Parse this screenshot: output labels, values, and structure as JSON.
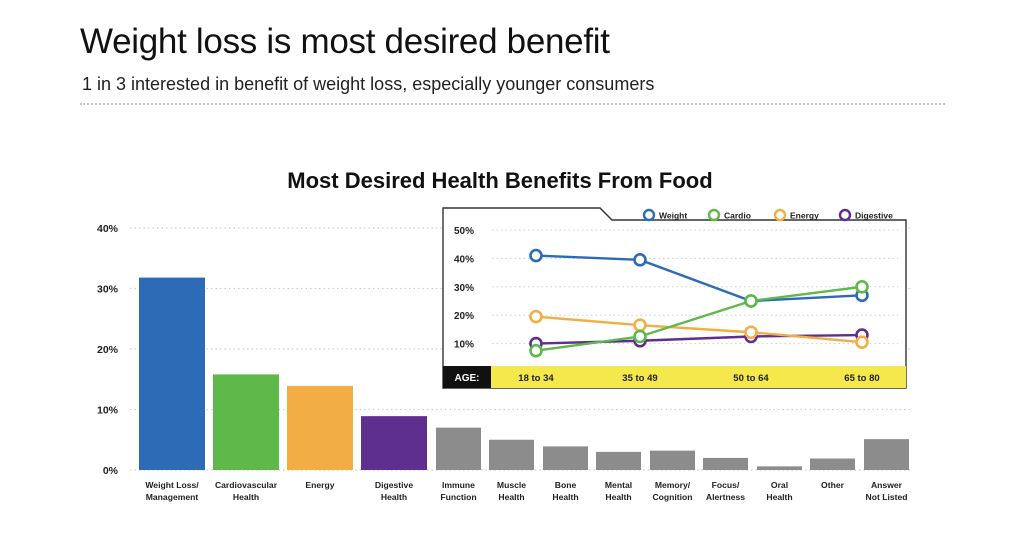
{
  "page": {
    "title": "Weight loss is most desired benefit",
    "subtitle": "1 in 3 interested in benefit of weight loss, especially younger consumers"
  },
  "chart_data": [
    {
      "type": "bar",
      "title": "Most Desired Health Benefits From Food",
      "xlabel": "",
      "ylabel": "",
      "ylim": [
        0,
        40
      ],
      "yticks": [
        "0%",
        "10%",
        "20%",
        "30%",
        "40%"
      ],
      "ytick_values": [
        0,
        10,
        20,
        30,
        40
      ],
      "grid": true,
      "categories": [
        [
          "Weight Loss/",
          "Management"
        ],
        [
          "Cardiovascular",
          "Health"
        ],
        [
          "Energy"
        ],
        [
          "Digestive",
          "Health"
        ],
        [
          "Immune",
          "Function"
        ],
        [
          "Muscle",
          "Health"
        ],
        [
          "Bone",
          "Health"
        ],
        [
          "Mental",
          "Health"
        ],
        [
          "Memory/",
          "Cognition"
        ],
        [
          "Focus/",
          "Alertness"
        ],
        [
          "Oral",
          "Health"
        ],
        [
          "Other"
        ],
        [
          "Answer",
          "Not Listed"
        ]
      ],
      "values": [
        31.8,
        15.8,
        13.9,
        8.9,
        7,
        5,
        3.9,
        3,
        3.2,
        2,
        0.6,
        1.9,
        5.1
      ],
      "colors": [
        "#2e6bb7",
        "#5fb84a",
        "#f2ae45",
        "#5e2f8f",
        "#8c8c8c",
        "#8c8c8c",
        "#8c8c8c",
        "#8c8c8c",
        "#8c8c8c",
        "#8c8c8c",
        "#8c8c8c",
        "#8c8c8c",
        "#8c8c8c"
      ]
    },
    {
      "type": "line",
      "ylim": [
        0,
        50
      ],
      "yticks": [
        "10%",
        "20%",
        "30%",
        "40%",
        "50%"
      ],
      "ytick_values": [
        10,
        20,
        30,
        40,
        50
      ],
      "x_label": "AGE:",
      "x": [
        "18 to 34",
        "35 to 49",
        "50 to 64",
        "65 to 80"
      ],
      "legend_position": "top",
      "series": [
        {
          "name": "Weight",
          "values": [
            41,
            39.5,
            25,
            27
          ],
          "color": "#2e6bb7"
        },
        {
          "name": "Cardio",
          "values": [
            7.5,
            12.5,
            25,
            30
          ],
          "color": "#5fb84a"
        },
        {
          "name": "Energy",
          "values": [
            19.5,
            16.5,
            14,
            10.5
          ],
          "color": "#f2ae45"
        },
        {
          "name": "Digestive",
          "values": [
            10,
            11,
            12.5,
            13
          ],
          "color": "#5e2f8f"
        }
      ],
      "bar_color": "#f5e84c"
    }
  ]
}
